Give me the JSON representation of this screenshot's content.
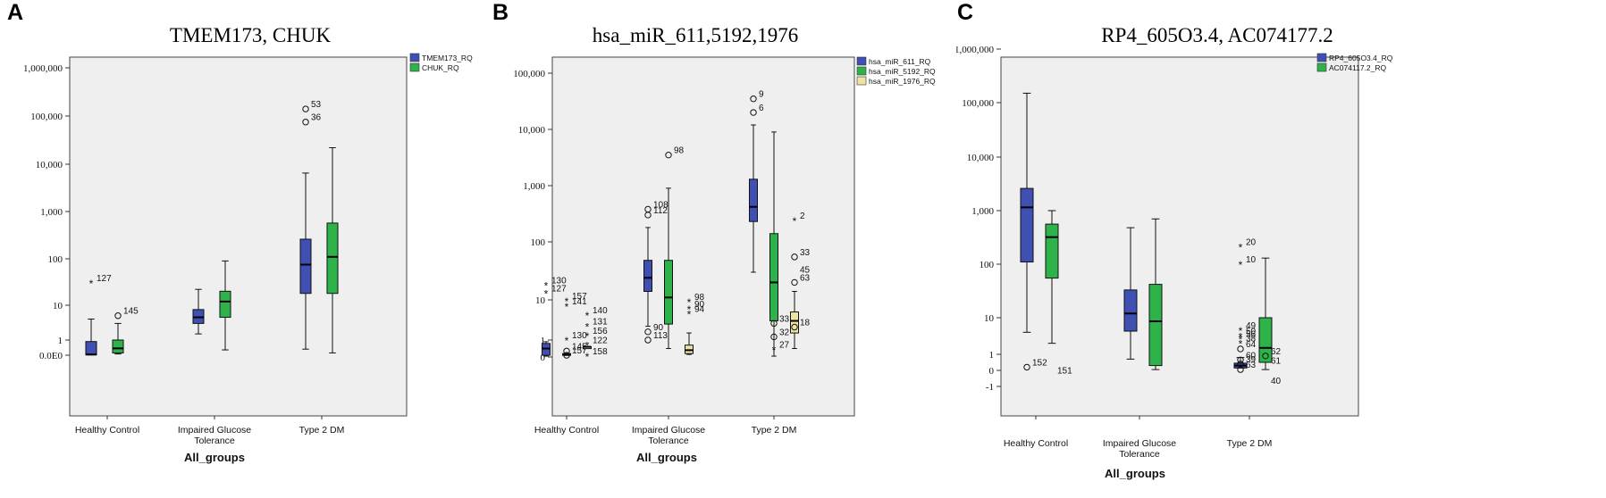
{
  "panels": [
    {
      "letter": "A",
      "title": "TMEM173, CHUK",
      "xlabel": "All_groups",
      "chart_data": {
        "type": "boxplot",
        "title": "TMEM173, CHUK",
        "xlabel": "All_groups",
        "ylabel": "",
        "yscale": "log",
        "categories": [
          "Healthy Control",
          "Impaired Glucose Tolerance",
          "Type 2 DM"
        ],
        "yticks": [
          {
            "v": 0,
            "l": "0.0E0"
          },
          {
            "v": 1,
            "l": "1"
          },
          {
            "v": 10,
            "l": "10"
          },
          {
            "v": 100,
            "l": "100"
          },
          {
            "v": 1000,
            "l": "1,000"
          },
          {
            "v": 10000,
            "l": "10,000"
          },
          {
            "v": 100000,
            "l": "100,000"
          },
          {
            "v": 1000000,
            "l": "1,000,000"
          }
        ],
        "legend": {
          "position": "top-right"
        },
        "series": [
          {
            "name": "TMEM173_RQ",
            "color": "#3f4fb2",
            "boxes": [
              {
                "whislo": 0.02,
                "q1": 0.02,
                "med": 0.05,
                "q3": 0.9,
                "whishi": 4
              },
              {
                "whislo": 1.5,
                "q1": 3,
                "med": 4.5,
                "q3": 7.5,
                "whishi": 22
              },
              {
                "whislo": 0.4,
                "q1": 18,
                "med": 75,
                "q3": 260,
                "whishi": 6500
              }
            ],
            "outliers": [
              {
                "g": 0,
                "y": 30,
                "label": "127",
                "sym": "*"
              },
              {
                "g": 2,
                "y": 140000,
                "label": "53",
                "sym": "o"
              },
              {
                "g": 2,
                "y": 75000,
                "label": "36",
                "sym": "o"
              }
            ]
          },
          {
            "name": "CHUK_RQ",
            "color": "#2eb34a",
            "boxes": [
              {
                "whislo": 0.08,
                "q1": 0.15,
                "med": 0.45,
                "q3": 1.0,
                "whishi": 3
              },
              {
                "whislo": 0.35,
                "q1": 4.5,
                "med": 12,
                "q3": 20,
                "whishi": 90
              },
              {
                "whislo": 0.15,
                "q1": 18,
                "med": 110,
                "q3": 570,
                "whishi": 22000
              }
            ],
            "outliers": [
              {
                "g": 0,
                "y": 5,
                "label": "145",
                "sym": "o"
              }
            ]
          }
        ]
      }
    },
    {
      "letter": "B",
      "title": "hsa_miR_611,5192,1976",
      "xlabel": "All_groups",
      "chart_data": {
        "type": "boxplot",
        "title": "hsa_miR_611,5192,1976",
        "xlabel": "All_groups",
        "ylabel": "",
        "yscale": "log",
        "categories": [
          "Healthy Control",
          "Impaired Glucose Tolerance",
          "Type 2 DM"
        ],
        "yticks": [
          {
            "v": 0,
            "l": "0"
          },
          {
            "v": 1,
            "l": "1"
          },
          {
            "v": 10,
            "l": "10"
          },
          {
            "v": 100,
            "l": "100"
          },
          {
            "v": 1000,
            "l": "1,000"
          },
          {
            "v": 10000,
            "l": "10,000"
          },
          {
            "v": 100000,
            "l": "100,000"
          }
        ],
        "legend": {
          "position": "top-right"
        },
        "series": [
          {
            "name": "hsa_miR_611_RQ",
            "color": "#3f4fb2",
            "boxes": [
              {
                "whislo": 0.05,
                "q1": 0.1,
                "med": 0.5,
                "q3": 0.8,
                "whishi": 0.9
              },
              {
                "whislo": 2.2,
                "q1": 14,
                "med": 24,
                "q3": 48,
                "whishi": 180
              },
              {
                "whislo": 30,
                "q1": 230,
                "med": 420,
                "q3": 1300,
                "whishi": 12000
              }
            ],
            "outliers": [
              {
                "g": 0,
                "y": 18,
                "label": "130",
                "sym": "*"
              },
              {
                "g": 0,
                "y": 13,
                "label": "127",
                "sym": "*"
              },
              {
                "g": 1,
                "y": 380,
                "label": "108",
                "sym": "o"
              },
              {
                "g": 1,
                "y": 300,
                "label": "112",
                "sym": "o"
              },
              {
                "g": 1,
                "y": 1.6,
                "label": "90",
                "sym": "o"
              },
              {
                "g": 1,
                "y": 1.0,
                "label": "113",
                "sym": "o"
              },
              {
                "g": 2,
                "y": 35000,
                "label": "9",
                "sym": "o"
              },
              {
                "g": 2,
                "y": 20000,
                "label": "6",
                "sym": "o"
              }
            ]
          },
          {
            "name": "hsa_miR_5192_RQ",
            "color": "#2eb34a",
            "boxes": [
              {
                "whislo": 0.1,
                "q1": 0.1,
                "med": 0.15,
                "q3": 0.2,
                "whishi": 0.2
              },
              {
                "whislo": 0.5,
                "q1": 2.5,
                "med": 11,
                "q3": 48,
                "whishi": 900
              },
              {
                "whislo": 0.05,
                "q1": 3,
                "med": 20,
                "q3": 140,
                "whishi": 9000
              }
            ],
            "outliers": [
              {
                "g": 0,
                "y": 9.5,
                "label": "157",
                "sym": "*"
              },
              {
                "g": 0,
                "y": 7,
                "label": "141",
                "sym": "*"
              },
              {
                "g": 0,
                "y": 1.0,
                "label": "130",
                "sym": "*"
              },
              {
                "g": 0,
                "y": 0.35,
                "label": "145",
                "sym": "o"
              },
              {
                "g": 0,
                "y": 0.1,
                "label": "157",
                "sym": "o"
              },
              {
                "g": 1,
                "y": 3500,
                "label": "98",
                "sym": "o"
              },
              {
                "g": 2,
                "y": 2.6,
                "label": "33",
                "sym": "o"
              },
              {
                "g": 2,
                "y": 1.2,
                "label": "32",
                "sym": "o"
              },
              {
                "g": 2,
                "y": 0.45,
                "label": "27",
                "sym": "*"
              }
            ]
          },
          {
            "name": "hsa_miR_1976_RQ",
            "color": "#ede3a2",
            "boxes": [
              {
                "whislo": 0.6,
                "q1": 0.6,
                "med": 0.6,
                "q3": 0.6,
                "whishi": 0.6
              },
              {
                "whislo": 0.15,
                "q1": 0.2,
                "med": 0.4,
                "q3": 0.7,
                "whishi": 1.5
              },
              {
                "whislo": 0.5,
                "q1": 1.5,
                "med": 3,
                "q3": 5,
                "whishi": 14
              }
            ],
            "outliers": [
              {
                "g": 0,
                "y": 4.2,
                "label": "140",
                "sym": "*"
              },
              {
                "g": 0,
                "y": 2.2,
                "label": "131",
                "sym": "*"
              },
              {
                "g": 0,
                "y": 1.3,
                "label": "156",
                "sym": "*"
              },
              {
                "g": 0,
                "y": 0.7,
                "label": "122",
                "sym": "*"
              },
              {
                "g": 0,
                "y": 0.05,
                "label": "158",
                "sym": "*"
              },
              {
                "g": 1,
                "y": 9,
                "label": "98",
                "sym": "*"
              },
              {
                "g": 1,
                "y": 6,
                "label": "90",
                "sym": "*"
              },
              {
                "g": 1,
                "y": 4.5,
                "label": "94",
                "sym": "*"
              },
              {
                "g": 2,
                "y": 240,
                "label": "2",
                "sym": "*"
              },
              {
                "g": 2,
                "y": 55,
                "label": "33",
                "sym": "o"
              },
              {
                "g": 2,
                "y": 20,
                "label": "63",
                "sym": "o"
              },
              {
                "g": 2,
                "y": 2.1,
                "label": "18",
                "sym": "o"
              }
            ]
          }
        ],
        "annotations": [
          {
            "g": 2,
            "y": 34,
            "label": "45"
          }
        ]
      }
    },
    {
      "letter": "C",
      "title": "RP4_605O3.4, AC074177.2",
      "xlabel": "All_groups",
      "chart_data": {
        "type": "boxplot",
        "title": "RP4_605O3.4, AC074177.2",
        "xlabel": "All_groups",
        "ylabel": "",
        "yscale": "log",
        "categories": [
          "Healthy Control",
          "Impaired Glucose Tolerance",
          "Type 2 DM"
        ],
        "yticks": [
          {
            "v": -1,
            "l": "-1"
          },
          {
            "v": 0,
            "l": "0"
          },
          {
            "v": 1,
            "l": "1"
          },
          {
            "v": 10,
            "l": "10"
          },
          {
            "v": 100,
            "l": "100"
          },
          {
            "v": 1000,
            "l": "1,000"
          },
          {
            "v": 10000,
            "l": "10,000"
          },
          {
            "v": 100000,
            "l": "100,000"
          },
          {
            "v": 1000000,
            "l": "1,000,000"
          }
        ],
        "legend": {
          "position": "top-right"
        },
        "series": [
          {
            "name": "RP4_605O3.4_RQ",
            "color": "#3f4fb2",
            "boxes": [
              {
                "whislo": 4,
                "q1": 110,
                "med": 1150,
                "q3": 2600,
                "whishi": 150000
              },
              {
                "whislo": 0.7,
                "q1": 4.3,
                "med": 12,
                "q3": 33,
                "whishi": 480
              },
              {
                "whislo": 0.15,
                "q1": 0.15,
                "med": 0.3,
                "q3": 0.45,
                "whishi": 0.8
              }
            ],
            "outliers": [
              {
                "g": 0,
                "y": 0.2,
                "label": "152",
                "sym": "o"
              },
              {
                "g": 2,
                "y": 210,
                "label": "20",
                "sym": "*"
              },
              {
                "g": 2,
                "y": 100,
                "label": "10",
                "sym": "*"
              },
              {
                "g": 2,
                "y": 4.5,
                "label": "49",
                "sym": "*"
              },
              {
                "g": 2,
                "y": 3.2,
                "label": "50",
                "sym": "*"
              },
              {
                "g": 2,
                "y": 2.7,
                "label": "56",
                "sym": "*"
              },
              {
                "g": 2,
                "y": 2.0,
                "label": "38",
                "sym": "*"
              },
              {
                "g": 2,
                "y": 1.4,
                "label": "64",
                "sym": "o"
              },
              {
                "g": 2,
                "y": 0.65,
                "label": "60",
                "sym": "o"
              },
              {
                "g": 2,
                "y": 0.4,
                "label": "39",
                "sym": "o"
              },
              {
                "g": 2,
                "y": 0.05,
                "label": "63",
                "sym": "o"
              }
            ]
          },
          {
            "name": "AC074117.2_RQ",
            "color": "#2eb34a",
            "boxes": [
              {
                "whislo": 2,
                "q1": 55,
                "med": 320,
                "q3": 560,
                "whishi": 1000
              },
              {
                "whislo": 0.05,
                "q1": 0.3,
                "med": 8,
                "q3": 42,
                "whishi": 700
              },
              {
                "whislo": 0.05,
                "q1": 0.5,
                "med": 1.5,
                "q3": 10,
                "whishi": 130
              }
            ],
            "outliers": [
              {
                "g": 2,
                "y": 0.9,
                "label": "62",
                "sym": "o"
              }
            ]
          }
        ],
        "annotations": [
          {
            "g": 0,
            "y": 0.02,
            "label": "151"
          },
          {
            "g": 2,
            "y": 0.65,
            "label": "61"
          },
          {
            "g": 2,
            "y": -0.6,
            "label": "40"
          }
        ]
      }
    }
  ]
}
